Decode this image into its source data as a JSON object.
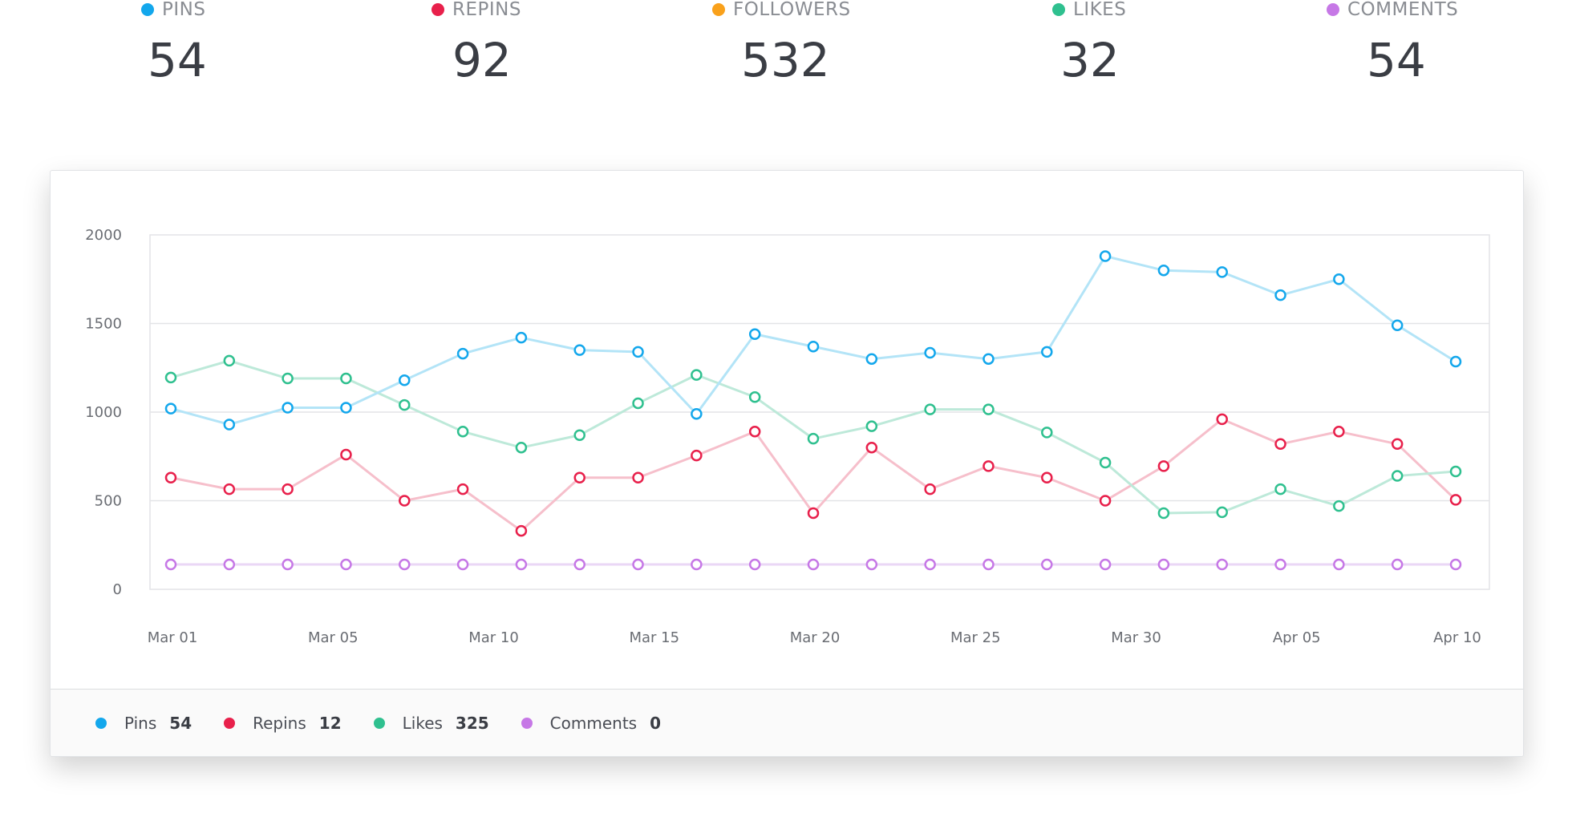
{
  "stats": [
    {
      "label": "PINS",
      "value": "54",
      "color": "#13a7ec"
    },
    {
      "label": "REPINS",
      "value": "92",
      "color": "#e8204b"
    },
    {
      "label": "FOLLOWERS",
      "value": "532",
      "color": "#f9a11b"
    },
    {
      "label": "LIKES",
      "value": "32",
      "color": "#2fc08f"
    },
    {
      "label": "COMMENTS",
      "value": "54",
      "color": "#c678e6"
    }
  ],
  "legend": [
    {
      "name": "Pins",
      "value": "54",
      "color": "#13a7ec"
    },
    {
      "name": "Repins",
      "value": "12",
      "color": "#e8204b"
    },
    {
      "name": "Likes",
      "value": "325",
      "color": "#2fc08f"
    },
    {
      "name": "Comments",
      "value": "0",
      "color": "#c678e6"
    }
  ],
  "chart_data": {
    "type": "line",
    "x_tick_labels": [
      "Mar 01",
      "Mar 05",
      "Mar 10",
      "Mar 15",
      "Mar 20",
      "Mar 25",
      "Mar 30",
      "Apr 05",
      "Apr 10"
    ],
    "y_tick_labels": [
      "0",
      "500",
      "1000",
      "1500",
      "2000"
    ],
    "ylim": [
      0,
      2000
    ],
    "grid": true,
    "legend_placement": "bottom",
    "series": [
      {
        "name": "Pins",
        "color": "#13a7ec",
        "line_color": "#b3e4f7",
        "values": [
          1020,
          930,
          1025,
          1025,
          1180,
          1330,
          1420,
          1350,
          1340,
          990,
          1440,
          1370,
          1300,
          1335,
          1300,
          1340,
          1880,
          1800,
          1790,
          1660,
          1750,
          1490,
          1285
        ]
      },
      {
        "name": "Repins",
        "color": "#e8204b",
        "line_color": "#f6bfcb",
        "values": [
          630,
          565,
          565,
          760,
          500,
          565,
          330,
          630,
          630,
          755,
          890,
          430,
          800,
          565,
          695,
          630,
          500,
          695,
          960,
          820,
          890,
          820,
          505
        ]
      },
      {
        "name": "Likes",
        "color": "#2fc08f",
        "line_color": "#bde9d9",
        "values": [
          1195,
          1290,
          1190,
          1190,
          1040,
          890,
          800,
          870,
          1050,
          1210,
          1085,
          850,
          920,
          1015,
          1015,
          885,
          715,
          430,
          435,
          565,
          470,
          640,
          665
        ]
      },
      {
        "name": "Comments",
        "color": "#c678e6",
        "line_color": "#ead7f6",
        "values": [
          140,
          140,
          140,
          140,
          140,
          140,
          140,
          140,
          140,
          140,
          140,
          140,
          140,
          140,
          140,
          140,
          140,
          140,
          140,
          140,
          140,
          140,
          140
        ]
      }
    ]
  }
}
